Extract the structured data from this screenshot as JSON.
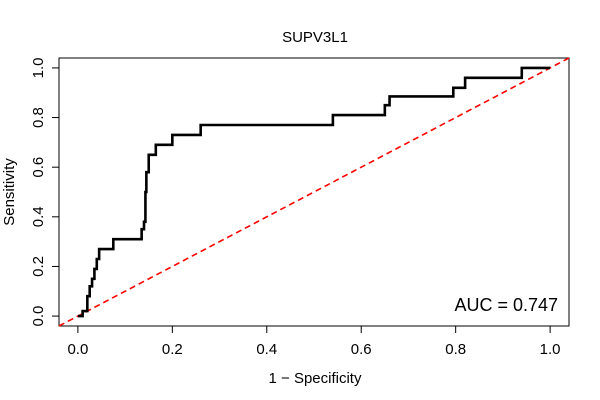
{
  "chart_data": {
    "type": "line",
    "title": "SUPV3L1",
    "xlabel": "1 − Specificity",
    "ylabel": "Sensitivity",
    "xlim": [
      -0.04,
      1.04
    ],
    "ylim": [
      -0.04,
      1.04
    ],
    "x_ticks": [
      0.0,
      0.2,
      0.4,
      0.6,
      0.8,
      1.0
    ],
    "x_tick_labels": [
      "0.0",
      "0.2",
      "0.4",
      "0.6",
      "0.8",
      "1.0"
    ],
    "y_ticks": [
      0.0,
      0.2,
      0.4,
      0.6,
      0.8,
      1.0
    ],
    "y_tick_labels": [
      "0.0",
      "0.2",
      "0.4",
      "0.6",
      "0.8",
      "1.0"
    ],
    "grid": false,
    "annotation": "AUC = 0.747",
    "series": [
      {
        "name": "ROC curve",
        "color": "#000000",
        "style": "solid",
        "x": [
          0.0,
          0.01,
          0.01,
          0.02,
          0.02,
          0.025,
          0.025,
          0.03,
          0.03,
          0.035,
          0.035,
          0.04,
          0.04,
          0.045,
          0.045,
          0.075,
          0.075,
          0.135,
          0.135,
          0.14,
          0.14,
          0.143,
          0.143,
          0.145,
          0.145,
          0.15,
          0.15,
          0.165,
          0.165,
          0.2,
          0.2,
          0.26,
          0.26,
          0.54,
          0.54,
          0.65,
          0.65,
          0.66,
          0.66,
          0.795,
          0.795,
          0.82,
          0.82,
          0.94,
          0.94,
          1.0
        ],
        "y": [
          0.0,
          0.0,
          0.02,
          0.02,
          0.08,
          0.08,
          0.12,
          0.12,
          0.15,
          0.15,
          0.19,
          0.19,
          0.23,
          0.23,
          0.27,
          0.27,
          0.31,
          0.31,
          0.35,
          0.35,
          0.38,
          0.38,
          0.5,
          0.5,
          0.58,
          0.58,
          0.65,
          0.65,
          0.69,
          0.69,
          0.73,
          0.73,
          0.77,
          0.77,
          0.81,
          0.81,
          0.85,
          0.85,
          0.885,
          0.885,
          0.92,
          0.92,
          0.96,
          0.96,
          1.0,
          1.0
        ]
      },
      {
        "name": "Reference diagonal",
        "color": "#ff0000",
        "style": "dashed",
        "x": [
          -0.04,
          1.04
        ],
        "y": [
          -0.04,
          1.04
        ]
      }
    ]
  }
}
